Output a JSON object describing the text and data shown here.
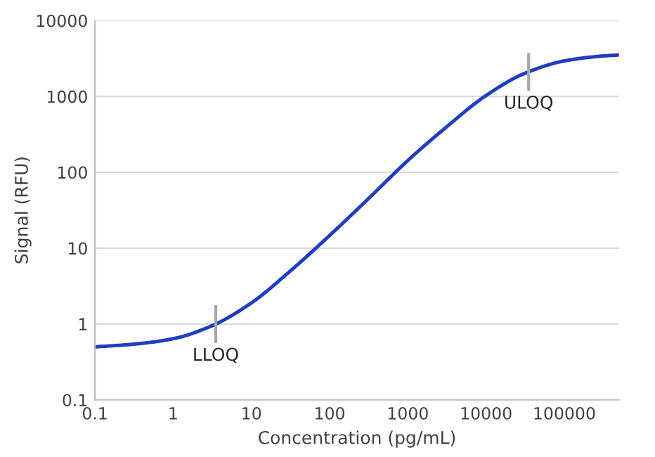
{
  "chart_data": {
    "type": "line",
    "xlabel": "Concentration (pg/mL)",
    "ylabel": "Signal (RFU)",
    "log": "xy",
    "xlim": [
      0.1,
      500000
    ],
    "ylim": [
      0.1,
      10000
    ],
    "xticks": [
      0.1,
      1,
      10,
      100,
      1000,
      10000,
      100000
    ],
    "yticks": [
      0.1,
      1,
      10,
      100,
      1000,
      10000
    ],
    "grid": "y",
    "legend": false,
    "marker": "none",
    "line_style": "solid",
    "series": [
      {
        "color": "#1f3fbf",
        "x": [
          0.1,
          0.3,
          1,
          3,
          10,
          30,
          100,
          300,
          1000,
          3000,
          10000,
          30000,
          100000,
          300000,
          500000
        ],
        "values": [
          0.5,
          0.54,
          0.64,
          0.93,
          1.9,
          4.8,
          14.7,
          43,
          143,
          383,
          1028,
          1980,
          2937,
          3405,
          3517
        ]
      }
    ],
    "annotations": [
      {
        "text": "LLOQ",
        "x": 3.5,
        "y": 1
      },
      {
        "text": "ULOQ",
        "x": 35000,
        "y": 2100
      }
    ]
  }
}
